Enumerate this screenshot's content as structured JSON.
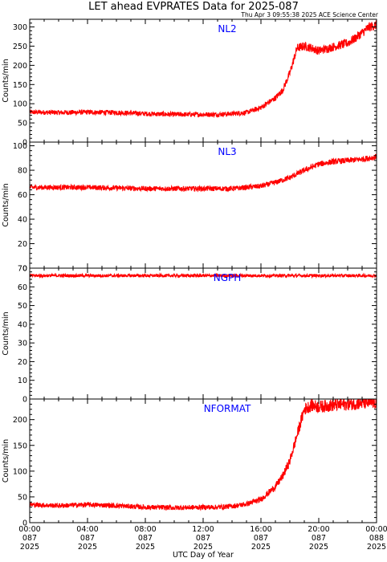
{
  "title": "LET ahead EVPRATES Data for 2025-087",
  "subtitle": "Thu Apr  3 09:55:38 2025 ACE Science Center",
  "xlabel": "UTC Day of Year",
  "x_ticks": [
    {
      "time": "00:00",
      "doy": "087",
      "year": "2025"
    },
    {
      "time": "04:00",
      "doy": "087",
      "year": "2025"
    },
    {
      "time": "08:00",
      "doy": "087",
      "year": "2025"
    },
    {
      "time": "12:00",
      "doy": "087",
      "year": "2025"
    },
    {
      "time": "16:00",
      "doy": "087",
      "year": "2025"
    },
    {
      "time": "20:00",
      "doy": "087",
      "year": "2025"
    },
    {
      "time": "00:00",
      "doy": "088",
      "year": "2025"
    }
  ],
  "colors": {
    "series": "#ff0000",
    "panel_label": "#0000ff",
    "axis": "#000000"
  },
  "chart_data": [
    {
      "type": "line",
      "panel_label": "NL2",
      "ylabel": "Counts/min",
      "xlim_hours": [
        0,
        24
      ],
      "ylim": [
        0,
        320
      ],
      "yticks": [
        0,
        50,
        100,
        150,
        200,
        250,
        300
      ],
      "series": [
        {
          "x_hours": [
            0,
            2,
            4,
            6,
            8,
            10,
            12,
            13,
            14,
            15,
            16,
            17,
            17.5,
            18,
            18.5,
            19,
            19.5,
            20,
            21,
            22,
            22.5,
            23,
            23.5,
            24
          ],
          "y": [
            78,
            77,
            78,
            77,
            74,
            72,
            72,
            72,
            74,
            77,
            90,
            115,
            135,
            180,
            245,
            250,
            245,
            238,
            248,
            258,
            270,
            285,
            300,
            305
          ]
        }
      ]
    },
    {
      "type": "line",
      "panel_label": "NL3",
      "ylabel": "Counts/min",
      "xlim_hours": [
        0,
        24
      ],
      "ylim": [
        0,
        103
      ],
      "yticks": [
        0,
        20,
        40,
        60,
        80,
        100
      ],
      "series": [
        {
          "x_hours": [
            0,
            4,
            8,
            12,
            14,
            15,
            16,
            17,
            18,
            19,
            20,
            21,
            22,
            23,
            24
          ],
          "y": [
            66,
            66,
            65,
            65,
            65,
            66,
            67,
            70,
            74,
            80,
            85,
            87,
            88,
            89,
            91
          ]
        }
      ]
    },
    {
      "type": "line",
      "panel_label": "NGPH",
      "ylabel": "Counts/min",
      "xlim_hours": [
        0,
        24
      ],
      "ylim": [
        0,
        70
      ],
      "yticks": [
        0,
        10,
        20,
        30,
        40,
        50,
        60,
        70
      ],
      "series": [
        {
          "x_hours": [
            0,
            4,
            8,
            12,
            16,
            20,
            24
          ],
          "y": [
            66,
            66,
            66,
            66,
            66,
            66,
            66
          ]
        }
      ]
    },
    {
      "type": "line",
      "panel_label": "NFORMAT",
      "ylabel": "Counts/min",
      "xlim_hours": [
        0,
        24
      ],
      "ylim": [
        0,
        240
      ],
      "yticks": [
        0,
        50,
        100,
        150,
        200
      ],
      "series": [
        {
          "x_hours": [
            0,
            2,
            4,
            6,
            8,
            10,
            12,
            13,
            14,
            15,
            16,
            17,
            17.5,
            18,
            18.5,
            19,
            19.5,
            20,
            21,
            22,
            23,
            24
          ],
          "y": [
            35,
            33,
            35,
            33,
            30,
            29,
            30,
            30,
            32,
            36,
            45,
            70,
            90,
            120,
            170,
            220,
            228,
            225,
            228,
            230,
            232,
            233
          ]
        }
      ]
    }
  ]
}
